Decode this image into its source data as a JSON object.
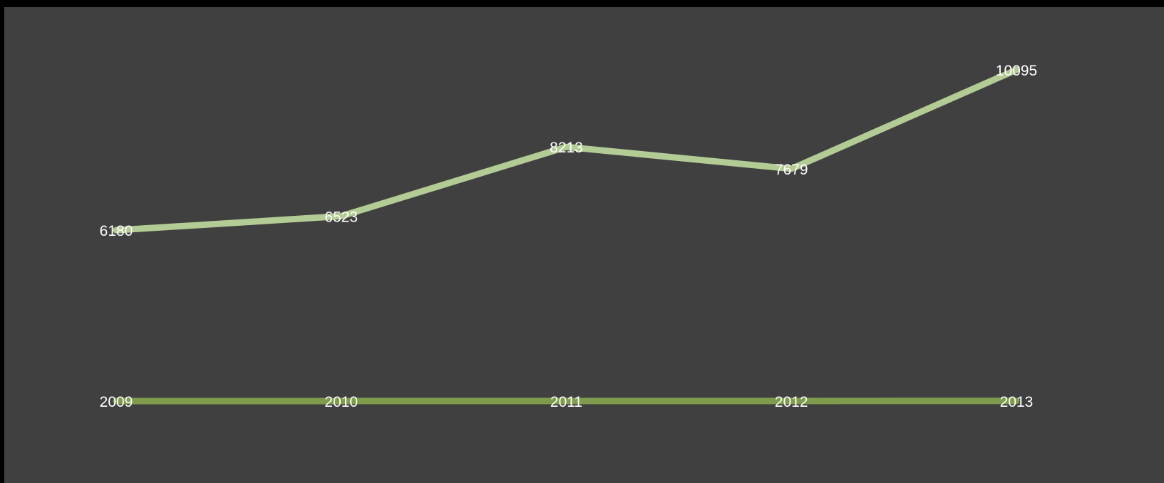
{
  "chart_data": {
    "type": "line",
    "categories": [
      "2009",
      "2010",
      "2011",
      "2012",
      "2013"
    ],
    "series": [
      {
        "values": [
          6180,
          6523,
          8213,
          7679,
          10095
        ],
        "color": "#b3cb94",
        "labels": [
          "6180",
          "6523",
          "8213",
          "7679",
          "10095"
        ]
      },
      {
        "values": [
          2009,
          2010,
          2011,
          2012,
          2013
        ],
        "color": "#7f9c4c",
        "labels": [
          "2009",
          "2010",
          "2011",
          "2012",
          "2013"
        ]
      }
    ],
    "background": "#404040",
    "legend": "none",
    "grid": false,
    "axes": "hidden"
  }
}
